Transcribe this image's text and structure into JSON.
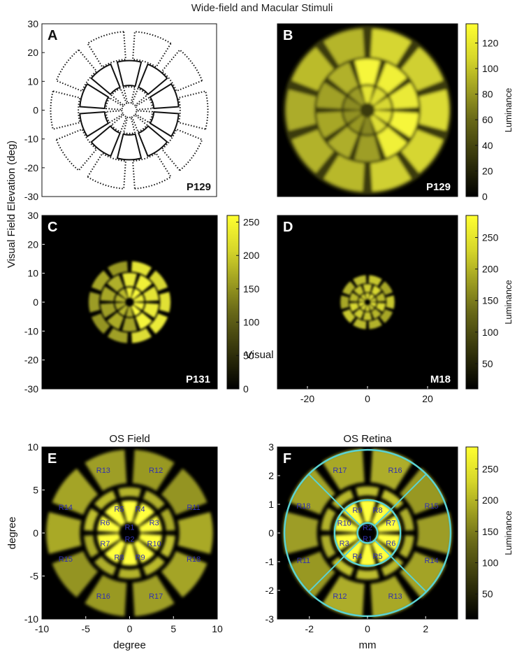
{
  "figure": {
    "title": "Wide-field and Macular Stimuli",
    "shared_ylabel": "Visual Field  Elevation (deg)",
    "shared_xlabel": "Visual Field  Azimuth (deg)"
  },
  "colorbar_label": "Luminance",
  "colors": {
    "black": "#000000",
    "yellow": "#ffff30",
    "cyan": "#5ad2d2",
    "region_label": "#3030b0"
  },
  "chart_data": [
    {
      "id": "A",
      "type": "outline-map",
      "panel_letter": "A",
      "subject": "P129",
      "xlim": [
        -30,
        30
      ],
      "ylim": [
        -30,
        30
      ],
      "yticks": [
        30,
        20,
        10,
        0,
        -10,
        -20,
        -30
      ],
      "xticks": [],
      "rings_deg": [
        2.5,
        8,
        17,
        27
      ],
      "solid_band_deg": [
        8,
        17
      ],
      "dotted_bands_deg": [
        [
          2.5,
          8
        ],
        [
          17,
          27
        ]
      ],
      "background": "white"
    },
    {
      "id": "B",
      "type": "heatmap",
      "panel_letter": "B",
      "subject": "P129",
      "xlim": [
        -30,
        30
      ],
      "ylim": [
        -30,
        30
      ],
      "xticks": [],
      "yticks": [],
      "rings_deg": [
        2.5,
        8,
        17,
        27
      ],
      "split_left_brighter": false,
      "colorbar": {
        "ticks": [
          0,
          20,
          40,
          60,
          80,
          100,
          120
        ],
        "range": [
          0,
          135
        ],
        "label": "Luminance"
      }
    },
    {
      "id": "C",
      "type": "heatmap",
      "panel_letter": "C",
      "subject": "P131",
      "xlim": [
        -30,
        30
      ],
      "ylim": [
        -30,
        30
      ],
      "xticks": [],
      "yticks": [
        30,
        20,
        10,
        0,
        -10,
        -20,
        -30
      ],
      "rings_deg": [
        1.5,
        5,
        10,
        14
      ],
      "colorbar": {
        "ticks": [
          0,
          50,
          100,
          150,
          200,
          250
        ],
        "range": [
          0,
          260
        ],
        "label": ""
      }
    },
    {
      "id": "D",
      "type": "heatmap",
      "panel_letter": "D",
      "subject": "M18",
      "xlim": [
        -30,
        30
      ],
      "ylim": [
        -30,
        30
      ],
      "xticks": [
        -20,
        0,
        20
      ],
      "yticks": [],
      "rings_deg": [
        1,
        3,
        6,
        9
      ],
      "colorbar": {
        "ticks": [
          50,
          100,
          150,
          200,
          250
        ],
        "range": [
          10,
          285
        ],
        "label": "Luminance"
      }
    },
    {
      "id": "E",
      "type": "heatmap",
      "panel_letter": "E",
      "subject": "",
      "title": "OS Field",
      "xlabel": "degree",
      "ylabel": "degree",
      "xlim": [
        -10,
        10
      ],
      "ylim": [
        -10,
        10
      ],
      "xticks": [
        -10,
        -5,
        0,
        5,
        10
      ],
      "yticks": [
        10,
        5,
        0,
        -5,
        -10
      ],
      "rings_deg": [
        1.2,
        3.7,
        5.2,
        9.5
      ],
      "regions": [
        {
          "label": "R1",
          "x": 0,
          "y": 0.7
        },
        {
          "label": "R2",
          "x": 0,
          "y": -0.7
        },
        {
          "label": "R3",
          "x": 2.8,
          "y": 1.2
        },
        {
          "label": "R4",
          "x": 1.2,
          "y": 2.8
        },
        {
          "label": "R5",
          "x": -1.2,
          "y": 2.8
        },
        {
          "label": "R6",
          "x": -2.8,
          "y": 1.2
        },
        {
          "label": "R7",
          "x": -2.8,
          "y": -1.2
        },
        {
          "label": "R8",
          "x": -1.2,
          "y": -2.8
        },
        {
          "label": "R9",
          "x": 1.2,
          "y": -2.8
        },
        {
          "label": "R10",
          "x": 2.8,
          "y": -1.2
        },
        {
          "label": "R11",
          "x": 7.3,
          "y": 3.0
        },
        {
          "label": "R12",
          "x": 3.0,
          "y": 7.3
        },
        {
          "label": "R13",
          "x": -3.0,
          "y": 7.3
        },
        {
          "label": "R14",
          "x": -7.3,
          "y": 3.0
        },
        {
          "label": "R15",
          "x": -7.3,
          "y": -3.0
        },
        {
          "label": "R16",
          "x": -3.0,
          "y": -7.3
        },
        {
          "label": "R17",
          "x": 3.0,
          "y": -7.3
        },
        {
          "label": "R18",
          "x": 7.3,
          "y": -3.0
        }
      ]
    },
    {
      "id": "F",
      "type": "heatmap",
      "panel_letter": "F",
      "subject": "",
      "title": "OS Retina",
      "xlabel": "mm",
      "ylabel": "",
      "xlim": [
        -3.1,
        3.1
      ],
      "ylim": [
        -3,
        3
      ],
      "xticks": [
        -2,
        0,
        2
      ],
      "yticks": [
        3,
        2,
        1,
        0,
        -1,
        -2,
        -3
      ],
      "rings_deg": [
        0.35,
        1.15,
        1.6,
        2.9
      ],
      "overlay_circles_mm": [
        0.35,
        1.15,
        2.9
      ],
      "colorbar": {
        "ticks": [
          50,
          100,
          150,
          200,
          250
        ],
        "range": [
          10,
          285
        ],
        "label": "Luminance"
      },
      "regions": [
        {
          "label": "R1",
          "x": 0,
          "y": -0.2
        },
        {
          "label": "R2",
          "x": 0,
          "y": 0.2
        },
        {
          "label": "R3",
          "x": -0.8,
          "y": -0.35
        },
        {
          "label": "R4",
          "x": -0.35,
          "y": -0.8
        },
        {
          "label": "R5",
          "x": 0.35,
          "y": -0.8
        },
        {
          "label": "R6",
          "x": 0.8,
          "y": -0.35
        },
        {
          "label": "R7",
          "x": 0.8,
          "y": 0.35
        },
        {
          "label": "R8",
          "x": 0.35,
          "y": 0.8
        },
        {
          "label": "R9",
          "x": -0.35,
          "y": 0.8
        },
        {
          "label": "R10",
          "x": -0.8,
          "y": 0.35
        },
        {
          "label": "R11",
          "x": -2.2,
          "y": -0.95
        },
        {
          "label": "R12",
          "x": -0.95,
          "y": -2.2
        },
        {
          "label": "R13",
          "x": 0.95,
          "y": -2.2
        },
        {
          "label": "R14",
          "x": 2.2,
          "y": -0.95
        },
        {
          "label": "R15",
          "x": 2.2,
          "y": 0.95
        },
        {
          "label": "R16",
          "x": 0.95,
          "y": 2.2
        },
        {
          "label": "R17",
          "x": -0.95,
          "y": 2.2
        },
        {
          "label": "R18",
          "x": -2.2,
          "y": 0.95
        }
      ]
    }
  ]
}
